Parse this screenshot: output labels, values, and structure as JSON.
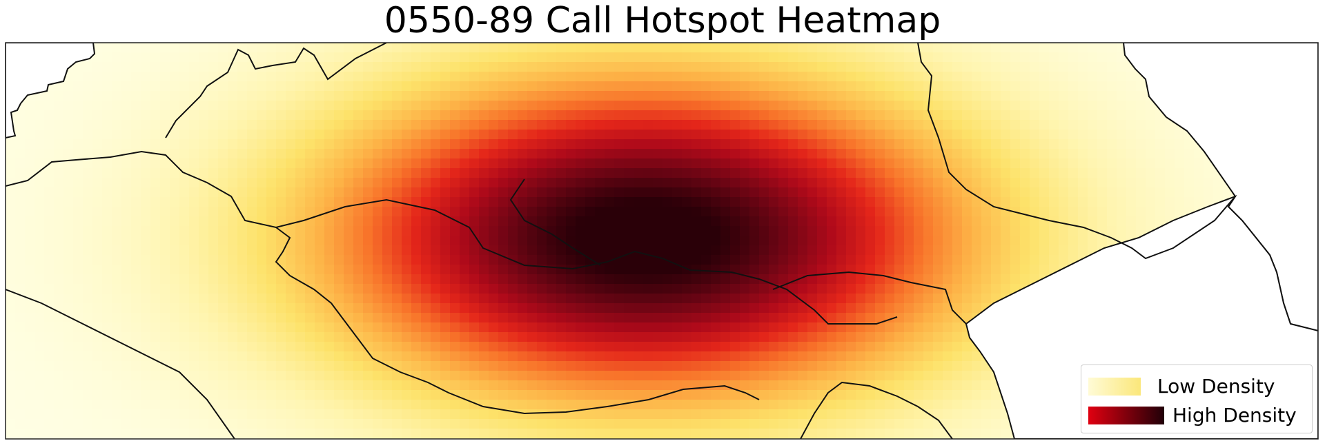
{
  "chart_data": {
    "type": "heatmap",
    "title": "0550-89 Call Hotspot Heatmap",
    "xlabel": "",
    "ylabel": "",
    "grid": false,
    "basemap": "region boundaries",
    "legend": {
      "placement": "bottom-right",
      "entries": [
        {
          "label": "Low Density",
          "colors": [
            "#fffbd6",
            "#fbe77a"
          ]
        },
        {
          "label": "High Density",
          "colors": [
            "#e00010",
            "#200008"
          ]
        }
      ]
    },
    "colormap": [
      "#ffffe6",
      "#fff5b0",
      "#fde26a",
      "#fdb347",
      "#f8742a",
      "#e4261a",
      "#b00a1a",
      "#6e0514",
      "#2a0008"
    ]
  }
}
